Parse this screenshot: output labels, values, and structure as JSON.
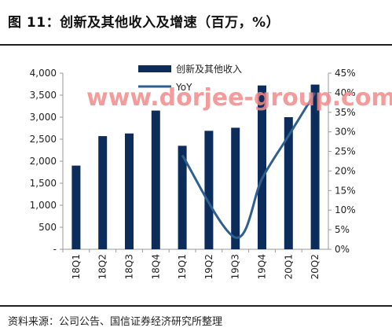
{
  "header": {
    "title": "图 11：创新及其他收入及增速（百万，%）"
  },
  "watermark": "www.dorjee-group.com",
  "source": "资料来源：公司公告、国信证券经济研究所整理",
  "colors": {
    "bar": "#0c2d5b",
    "line": "#2f5f8f",
    "watermark": "#f28b8b"
  },
  "chart_data": {
    "type": "bar",
    "categories": [
      "18Q1",
      "18Q2",
      "18Q3",
      "18Q4",
      "19Q1",
      "19Q2",
      "19Q3",
      "19Q4",
      "20Q1",
      "20Q2"
    ],
    "series": [
      {
        "name": "创新及其他收入",
        "type": "bar",
        "axis": "left",
        "values": [
          1900,
          2570,
          2630,
          3150,
          2350,
          2690,
          2760,
          3720,
          3000,
          3740
        ]
      },
      {
        "name": "YoY",
        "type": "line",
        "axis": "right",
        "values": [
          null,
          null,
          null,
          null,
          24,
          null,
          3,
          18,
          29,
          40
        ]
      }
    ],
    "ylim": [
      0,
      4000
    ],
    "y_ticks": [
      "-",
      "500",
      "1,000",
      "1,500",
      "2,000",
      "2,500",
      "3,000",
      "3,500",
      "4,000"
    ],
    "y2lim": [
      0,
      45
    ],
    "y2_ticks": [
      "0%",
      "5%",
      "10%",
      "15%",
      "20%",
      "25%",
      "30%",
      "35%",
      "40%",
      "45%"
    ],
    "legend": "top-center",
    "grid": false
  }
}
